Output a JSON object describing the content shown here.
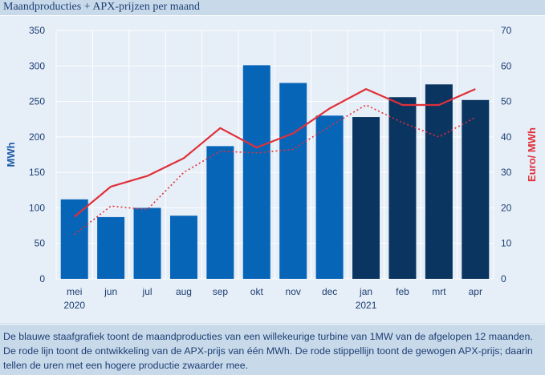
{
  "header": {
    "title": "Maandproducties + APX-prijzen per maand"
  },
  "chart_data": {
    "type": "bar",
    "categories": [
      "mei",
      "jun",
      "jul",
      "aug",
      "sep",
      "okt",
      "nov",
      "dec",
      "jan",
      "feb",
      "mrt",
      "apr"
    ],
    "year_labels": [
      {
        "category": "mei",
        "label": "2020"
      },
      {
        "category": "jan",
        "label": "2021"
      }
    ],
    "series": [
      {
        "kind": "bar",
        "axis": "left",
        "values": [
          112,
          87,
          100,
          89,
          187,
          301,
          276,
          230,
          228,
          256,
          274,
          252
        ],
        "colors": [
          "#0765b8",
          "#0765b8",
          "#0765b8",
          "#0765b8",
          "#0765b8",
          "#0765b8",
          "#0765b8",
          "#0765b8",
          "#0b3561",
          "#0b3561",
          "#0b3561",
          "#0b3561"
        ]
      },
      {
        "kind": "line",
        "axis": "right",
        "style": "solid",
        "color": "#e03039",
        "values": [
          17.5,
          26,
          29,
          34,
          42.5,
          37,
          41,
          48,
          53.5,
          49,
          49,
          53.5
        ]
      },
      {
        "kind": "line",
        "axis": "right",
        "style": "dotted",
        "color": "#e03039",
        "values": [
          12.5,
          20.5,
          19.5,
          30,
          36,
          35.5,
          36.5,
          43,
          49,
          44,
          40,
          45.5
        ]
      }
    ],
    "ylabel": "MWh",
    "ylabel_right": "Euro/ MWh",
    "ylim": [
      0,
      350
    ],
    "yticks": [
      0,
      50,
      100,
      150,
      200,
      250,
      300,
      350
    ],
    "ylim_right": [
      0,
      70
    ],
    "yticks_right": [
      0,
      10,
      20,
      30,
      40,
      50,
      60,
      70
    ],
    "grid": true,
    "colors": {
      "left_axis": "#1d5ca8",
      "right_axis": "#e03039",
      "grid": "#ffffff",
      "tick_text": "#1d3f73"
    }
  },
  "caption": {
    "text": "De blauwe staafgrafiek toont de maandproducties van een willekeurige turbine van 1MW van de afgelopen 12 maanden. De rode lijn toont de ontwikkeling van de APX-prijs van één MWh. De rode stippellijn toont de gewogen APX-prijs; daarin tellen de uren met een hogere productie zwaarder mee."
  }
}
